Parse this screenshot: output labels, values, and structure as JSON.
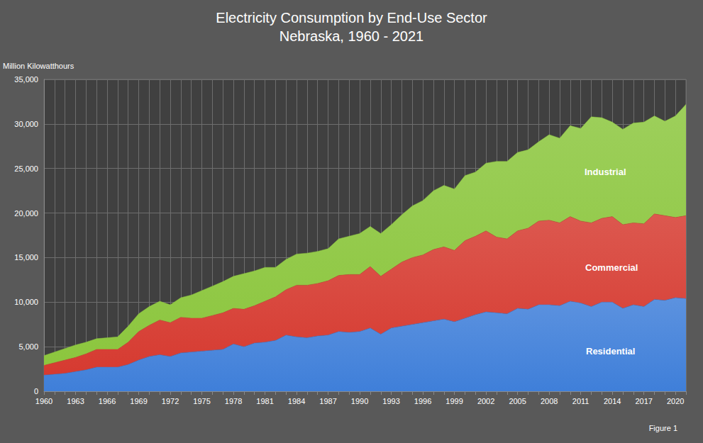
{
  "chart_data": {
    "type": "area",
    "title": "Electricity Consumption by End-Use Sector",
    "subtitle": "Nebraska, 1960 - 2021",
    "y_label": "Million Kilowatthours",
    "annotations": [
      "Figure 1"
    ],
    "stacked": true,
    "grid": true,
    "categories": [
      1960,
      null,
      null,
      1963,
      null,
      null,
      1966,
      null,
      null,
      1969,
      null,
      null,
      1972,
      null,
      null,
      1975,
      null,
      null,
      1978,
      null,
      null,
      1981,
      null,
      null,
      1984,
      null,
      null,
      1987,
      null,
      null,
      1990,
      null,
      null,
      1993,
      null,
      null,
      1996,
      null,
      null,
      1999,
      null,
      null,
      2002,
      null,
      null,
      2005,
      null,
      null,
      2008,
      null,
      null,
      2011,
      null,
      null,
      2014,
      null,
      null,
      2017,
      null,
      null,
      2020,
      null
    ],
    "series": [
      {
        "name": "Residential",
        "color": "#3f7fd9",
        "values": [
          1800,
          1900,
          2000,
          2200,
          2400,
          2700,
          2700,
          2700,
          3000,
          3500,
          3900,
          4100,
          3900,
          4300,
          4400,
          4500,
          4600,
          4700,
          5300,
          5000,
          5400,
          5500,
          5700,
          6300,
          6100,
          6000,
          6200,
          6300,
          6700,
          6600,
          6700,
          7100,
          6400,
          7100,
          7300,
          7500,
          7700,
          7900,
          8100,
          7800,
          8200,
          8600,
          8900,
          8800,
          8700,
          9300,
          9200,
          9700,
          9700,
          9600,
          10100,
          9900,
          9500,
          10000,
          10000,
          9300,
          9700,
          9500,
          10300,
          10200,
          10500,
          10400
        ]
      },
      {
        "name": "Commercial",
        "color": "#d63a30",
        "values": [
          1100,
          1300,
          1500,
          1600,
          1800,
          2000,
          2000,
          2000,
          2500,
          3200,
          3500,
          3900,
          3800,
          4000,
          3800,
          3700,
          3900,
          4100,
          4000,
          4200,
          4200,
          4600,
          4900,
          5100,
          5800,
          5900,
          5900,
          6100,
          6300,
          6500,
          6400,
          6900,
          6500,
          6600,
          7200,
          7500,
          7600,
          8000,
          8100,
          8000,
          8700,
          8800,
          9100,
          8500,
          8400,
          8700,
          9100,
          9400,
          9500,
          9300,
          9500,
          9200,
          9400,
          9400,
          9600,
          9400,
          9200,
          9300,
          9600,
          9500,
          9000,
          9300
        ]
      },
      {
        "name": "Industrial",
        "color": "#8cc63e",
        "values": [
          1100,
          1200,
          1300,
          1400,
          1300,
          1200,
          1300,
          1400,
          1800,
          2000,
          2100,
          2100,
          2000,
          2200,
          2600,
          3100,
          3300,
          3500,
          3600,
          4000,
          3900,
          3800,
          3300,
          3400,
          3500,
          3600,
          3600,
          3600,
          4100,
          4300,
          4600,
          4500,
          4800,
          5000,
          5300,
          5800,
          6100,
          6600,
          6900,
          6900,
          7300,
          7200,
          7600,
          8500,
          8700,
          8800,
          8800,
          8900,
          9600,
          9500,
          10200,
          10400,
          11900,
          11300,
          10600,
          10700,
          11200,
          11400,
          11000,
          10600,
          11400,
          12500
        ]
      }
    ],
    "ylim": [
      0,
      35000
    ],
    "yticks": [
      0,
      {
        "value": 5000,
        "label": "5,000"
      },
      {
        "value": 10000,
        "label": "10,000"
      },
      {
        "value": 15000,
        "label": "15,000"
      },
      {
        "value": 20000,
        "label": "20,000"
      },
      {
        "value": 25000,
        "label": "25,000"
      },
      {
        "value": 30000,
        "label": "30,000"
      },
      {
        "value": 35000,
        "label": "35,000"
      }
    ]
  }
}
